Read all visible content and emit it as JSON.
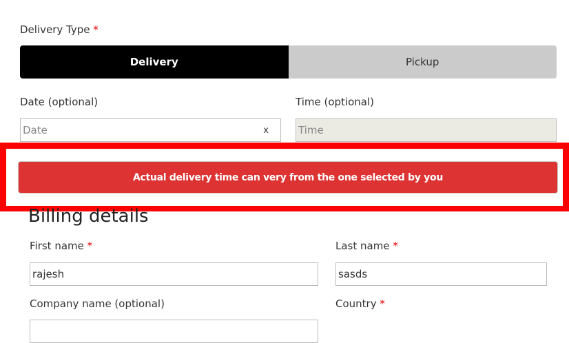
{
  "delivery_type": {
    "label": "Delivery Type",
    "required": "*",
    "options": [
      {
        "label": "Delivery",
        "selected": true
      },
      {
        "label": "Pickup",
        "selected": false
      }
    ]
  },
  "date": {
    "label": "Date (optional)",
    "placeholder": "Date",
    "clear": "x"
  },
  "time": {
    "label": "Time (optional)",
    "placeholder": "Time"
  },
  "notice": {
    "text": "Actual delivery time can very from the one selected by you",
    "color": "#dd3333",
    "highlight_color": "#ff0000"
  },
  "billing": {
    "title": "Billing details",
    "first_name": {
      "label": "First name",
      "required": "*",
      "value": "rajesh"
    },
    "last_name": {
      "label": "Last name",
      "required": "*",
      "value": "sasds"
    },
    "company": {
      "label": "Company name (optional)"
    },
    "country": {
      "label": "Country",
      "required": "*"
    }
  }
}
